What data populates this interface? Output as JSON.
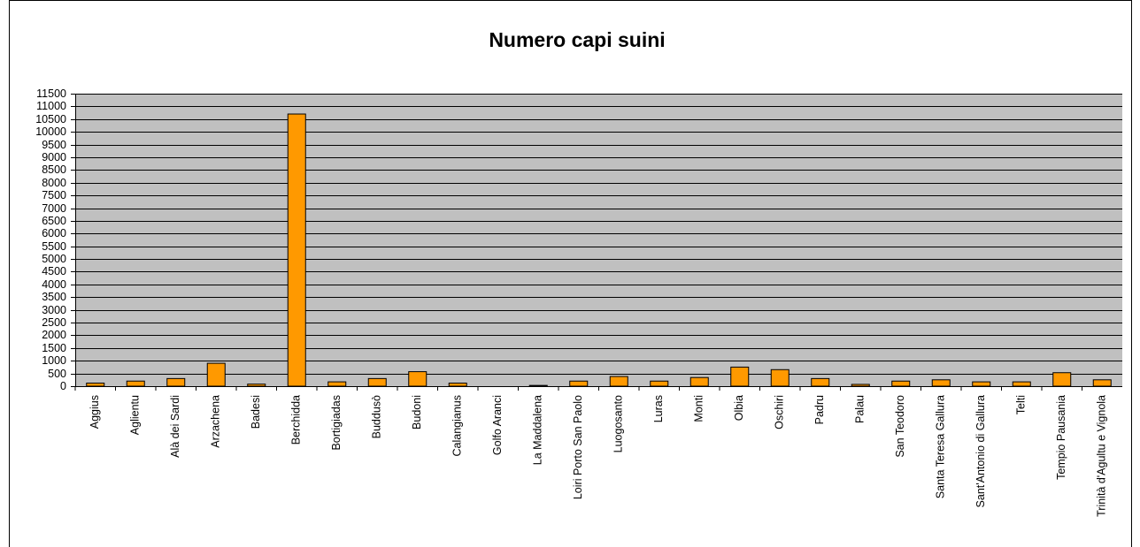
{
  "chart_data": {
    "type": "bar",
    "title": "Numero capi suini",
    "categories": [
      "Aggius",
      "Aglientu",
      "Alà dei Sardi",
      "Arzachena",
      "Badesi",
      "Berchidda",
      "Bortigiadas",
      "Buddusò",
      "Budoni",
      "Calangianus",
      "Golfo Aranci",
      "La Maddalena",
      "Loiri Porto San Paolo",
      "Luogosanto",
      "Luras",
      "Monti",
      "Olbia",
      "Oschiri",
      "Padru",
      "Palau",
      "San Teodoro",
      "Santa Teresa Gallura",
      "Sant'Antonio di Gallura",
      "Telti",
      "Tempio Pausania",
      "Trinità d'Agultu e Vignola"
    ],
    "values": [
      120,
      200,
      300,
      900,
      80,
      10700,
      170,
      300,
      570,
      120,
      0,
      30,
      200,
      380,
      200,
      340,
      750,
      650,
      300,
      70,
      200,
      250,
      170,
      170,
      530,
      250
    ],
    "color": "#ff9900",
    "ylim": [
      0,
      11500
    ],
    "yticks": [
      0,
      500,
      1000,
      1500,
      2000,
      2500,
      3000,
      3500,
      4000,
      4500,
      5000,
      5500,
      6000,
      6500,
      7000,
      7500,
      8000,
      8500,
      9000,
      9500,
      10000,
      10500,
      11000,
      11500
    ],
    "grid": true
  }
}
